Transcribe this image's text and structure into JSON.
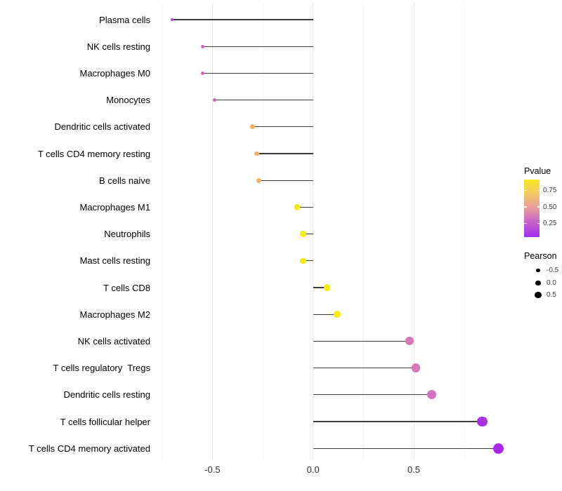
{
  "chart_data": {
    "type": "lollipop",
    "title": "",
    "xlabel": "",
    "ylabel": "",
    "x_tick_labels": [
      "-0.5",
      "0.0",
      "0.5"
    ],
    "x_tick_values": [
      -0.5,
      0.0,
      0.5
    ],
    "x_minor_values": [
      -0.75,
      -0.25,
      0.25,
      0.75
    ],
    "x_range": [
      -0.78,
      1.0
    ],
    "grid": "vertical-only",
    "legend_position": "right",
    "points": [
      {
        "label": "Plasma cells",
        "pearson": -0.7,
        "color": "#B843CC"
      },
      {
        "label": "NK cells resting",
        "pearson": -0.55,
        "color": "#C76CB9"
      },
      {
        "label": "Macrophages M0",
        "pearson": -0.55,
        "color": "#C76CB9"
      },
      {
        "label": "Monocytes",
        "pearson": -0.49,
        "color": "#CA6BB4"
      },
      {
        "label": "Dendritic cells activated",
        "pearson": -0.3,
        "color": "#F0B166"
      },
      {
        "label": "T cells CD4 memory resting",
        "pearson": -0.28,
        "color": "#F0B166"
      },
      {
        "label": "B cells naive",
        "pearson": -0.27,
        "color": "#F0B166"
      },
      {
        "label": "Macrophages M1",
        "pearson": -0.08,
        "color": "#F5EA10"
      },
      {
        "label": "Neutrophils",
        "pearson": -0.05,
        "color": "#F7EC08"
      },
      {
        "label": "Mast cells resting",
        "pearson": -0.05,
        "color": "#F7EC08"
      },
      {
        "label": "T cells CD8",
        "pearson": 0.07,
        "color": "#F8ED05"
      },
      {
        "label": "Macrophages M2",
        "pearson": 0.12,
        "color": "#F8EC0A"
      },
      {
        "label": "NK cells activated",
        "pearson": 0.48,
        "color": "#D875B6"
      },
      {
        "label": "T cells regulatory  Tregs",
        "pearson": 0.51,
        "color": "#D875B6"
      },
      {
        "label": "Dendritic cells resting",
        "pearson": 0.59,
        "color": "#D471C4"
      },
      {
        "label": "T cells follicular helper",
        "pearson": 0.84,
        "color": "#AB30E3"
      },
      {
        "label": "T cells CD4 memory activated",
        "pearson": 0.92,
        "color": "#A927EA"
      }
    ],
    "legend": {
      "pvalue": {
        "title": "Pvalue",
        "labels": [
          "0.75",
          "0.50",
          "0.25"
        ],
        "gradient_stops": [
          "#F9E721",
          "#F2C46C",
          "#E59BA0",
          "#CB63CC",
          "#A22EF0"
        ]
      },
      "pearson": {
        "title": "Pearson",
        "labels": [
          "-0.5",
          "0.0",
          "0.5"
        ],
        "dot_color": "#000000"
      }
    },
    "colors": {
      "stem": "#3c3c3c",
      "grid_major": "#e7e7e7",
      "grid_minor": "#f4f4f4",
      "axis_text": "#2e2e2e",
      "background": "#ffffff"
    }
  }
}
